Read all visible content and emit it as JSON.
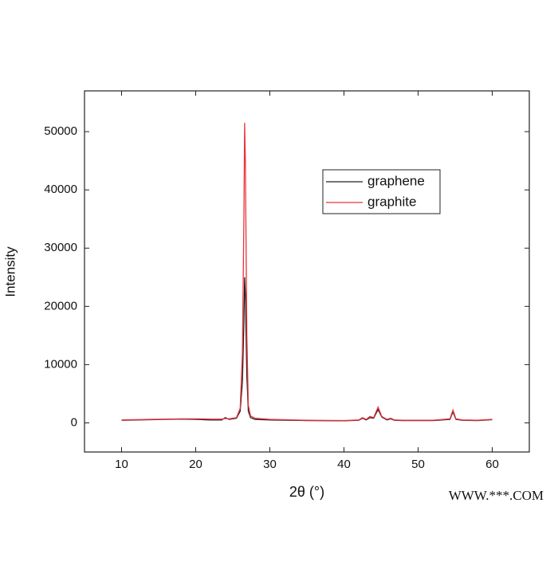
{
  "chart_data": {
    "type": "line",
    "xlabel": "2θ (°)",
    "ylabel": "Intensity",
    "watermark": "WWW.***.COM",
    "x": [
      10,
      12,
      14,
      16,
      18,
      20,
      22,
      23.5,
      24,
      24.5,
      25.5,
      26.0,
      26.3,
      26.5,
      26.6,
      26.7,
      26.9,
      27.1,
      27.4,
      28,
      30,
      35,
      40,
      42,
      42.5,
      43,
      43.5,
      44,
      44.6,
      45.1,
      45.8,
      46.3,
      46.8,
      48,
      52,
      54.3,
      54.7,
      55.1,
      56,
      58,
      60
    ],
    "series": [
      {
        "name": "graphene",
        "color": "#222222",
        "values": [
          450,
          500,
          550,
          600,
          650,
          600,
          500,
          500,
          900,
          600,
          800,
          2000,
          7000,
          17000,
          25000,
          22000,
          8000,
          2000,
          900,
          600,
          500,
          400,
          350,
          450,
          800,
          500,
          900,
          800,
          2300,
          1000,
          500,
          700,
          450,
          400,
          400,
          600,
          1900,
          600,
          450,
          400,
          550
        ]
      },
      {
        "name": "graphite",
        "color": "#e8333d",
        "values": [
          500,
          550,
          600,
          650,
          700,
          700,
          650,
          650,
          750,
          700,
          900,
          2500,
          12000,
          35000,
          51500,
          45000,
          15000,
          3000,
          1200,
          800,
          600,
          450,
          400,
          500,
          900,
          600,
          1100,
          900,
          2700,
          1100,
          600,
          800,
          500,
          450,
          450,
          700,
          2200,
          700,
          500,
          450,
          600
        ]
      }
    ],
    "xlim": [
      5,
      65
    ],
    "xticks": [
      10,
      20,
      30,
      40,
      50,
      60
    ],
    "ylim": [
      -5000,
      57000
    ],
    "yticks": [
      0,
      10000,
      20000,
      30000,
      40000,
      50000
    ],
    "legend": "upper right"
  }
}
